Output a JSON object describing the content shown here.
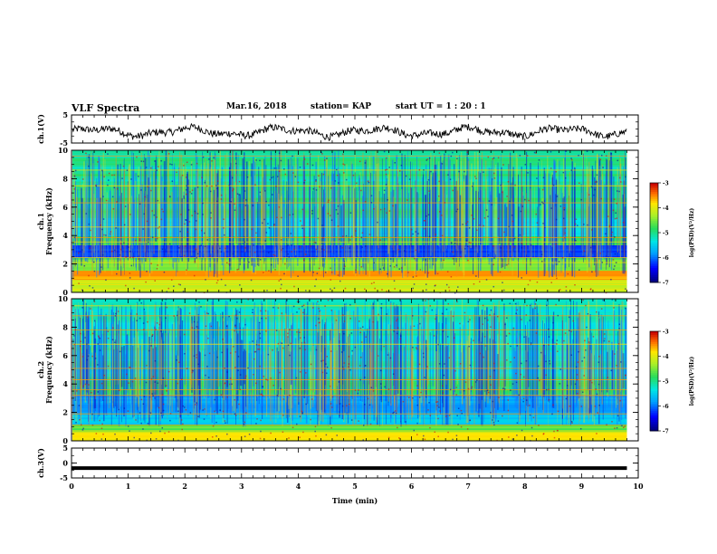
{
  "header": {
    "title": "VLF Spectra",
    "date": "Mar.16, 2018",
    "station": "station= KAP",
    "start": "start  UT =   1 : 20 : 1"
  },
  "chart_data": [
    {
      "type": "line",
      "name": "ch1-waveform",
      "ylabel": "ch.1(V)",
      "xlim": [
        0,
        10
      ],
      "ylim": [
        -5,
        5
      ],
      "yticks": [
        "5",
        "-5"
      ],
      "description_values": {
        "x": [
          0,
          9.8
        ],
        "y_range_approx": [
          -3.5,
          1.5
        ]
      }
    },
    {
      "type": "heatmap",
      "name": "ch1-spectrogram",
      "ylabel": "ch.1\nFrequency  (kHz)",
      "xlim": [
        0,
        10
      ],
      "ylim": [
        0,
        10
      ],
      "yticks": [
        "0",
        "2",
        "4",
        "6",
        "8",
        "10"
      ],
      "data_extent_x": [
        0,
        9.8
      ],
      "colorbar": {
        "label": "log(PSD)(V²/Hz)",
        "range": [
          -7,
          -3
        ],
        "ticks": [
          "-3",
          "-4",
          "-5",
          "-6",
          "-7"
        ]
      }
    },
    {
      "type": "heatmap",
      "name": "ch2-spectrogram",
      "ylabel": "ch.2\nFrequency  (kHz)",
      "xlim": [
        0,
        10
      ],
      "ylim": [
        0,
        10
      ],
      "yticks": [
        "0",
        "2",
        "4",
        "6",
        "8",
        "10"
      ],
      "data_extent_x": [
        0,
        9.8
      ],
      "colorbar": {
        "label": "log(PSD)(V²/Hz)",
        "range": [
          -7,
          -3
        ],
        "ticks": [
          "-3",
          "-4",
          "-5",
          "-6",
          "-7"
        ]
      }
    },
    {
      "type": "line",
      "name": "ch3-waveform",
      "ylabel": "ch.3(V)",
      "xlim": [
        0,
        10
      ],
      "ylim": [
        -5,
        5
      ],
      "yticks": [
        "5",
        "0",
        "-5"
      ],
      "x": [
        0,
        9.8
      ],
      "y": [
        -1.7,
        -1.7
      ]
    }
  ],
  "xaxis": {
    "label": "Time  (min)",
    "ticks": [
      "0",
      "1",
      "2",
      "3",
      "4",
      "5",
      "6",
      "7",
      "8",
      "9",
      "10"
    ]
  },
  "colors": {
    "plot_frame": "#000000",
    "trace": "#000000"
  }
}
